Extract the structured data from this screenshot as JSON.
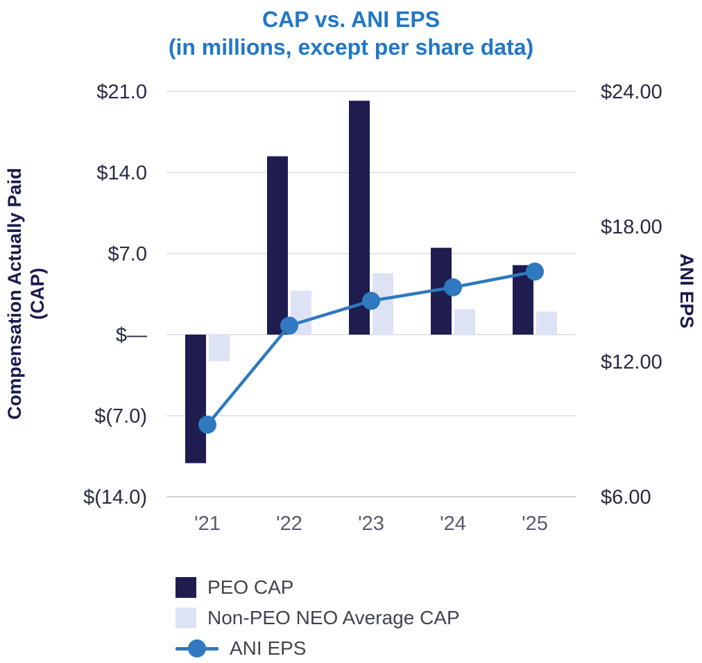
{
  "title": {
    "line1": "CAP vs. ANI EPS",
    "line2": "(in millions, except per share data)"
  },
  "left_axis": {
    "title_line1": "Compensation Actually Paid",
    "title_line2": "(CAP)",
    "ticks": [
      {
        "label": "$21.0",
        "value": 21
      },
      {
        "label": "$14.0",
        "value": 14
      },
      {
        "label": "$7.0",
        "value": 7
      },
      {
        "label": "$—",
        "value": 0
      },
      {
        "label": "$(7.0)",
        "value": -7
      },
      {
        "label": "$(14.0)",
        "value": -14
      }
    ]
  },
  "right_axis": {
    "title": "ANI EPS",
    "ticks": [
      {
        "label": "$24.00",
        "value": 24
      },
      {
        "label": "$18.00",
        "value": 18
      },
      {
        "label": "$12.00",
        "value": 12
      },
      {
        "label": "$6.00",
        "value": 6
      }
    ]
  },
  "legend": {
    "items": [
      {
        "label": "PEO CAP"
      },
      {
        "label": "Non-PEO NEO Average CAP"
      },
      {
        "label": "ANI EPS"
      }
    ]
  },
  "colors": {
    "title_blue": "#2177c8",
    "navy": "#1f1c50",
    "lavender": "#dde2f4",
    "line_blue": "#2e79c0",
    "grid": "#dcdce1",
    "axis_bottom": "#c2c2c8",
    "tick_text": "#262b3f",
    "x_tick_text": "#565b6c"
  },
  "chart_data": {
    "type": "bar+line combo",
    "title": "CAP vs. ANI EPS (in millions, except per share data)",
    "categories": [
      "'21",
      "'22",
      "'23",
      "'24",
      "'25"
    ],
    "series": [
      {
        "name": "PEO CAP",
        "type": "bar",
        "axis": "left",
        "color": "#1f1c50",
        "values": [
          -11.1,
          15.4,
          20.2,
          7.5,
          6.0
        ]
      },
      {
        "name": "Non-PEO NEO Average CAP",
        "type": "bar",
        "axis": "left",
        "color": "#dde2f4",
        "values": [
          -2.3,
          3.8,
          5.3,
          2.2,
          2.0
        ]
      },
      {
        "name": "ANI EPS",
        "type": "line",
        "axis": "right",
        "color": "#2e79c0",
        "values": [
          9.2,
          13.6,
          14.7,
          15.3,
          16.0
        ]
      }
    ],
    "left_ylabel": "Compensation Actually Paid (CAP)",
    "right_ylabel": "ANI EPS",
    "left_ylim": [
      -14,
      21
    ],
    "right_ylim": [
      6,
      24
    ],
    "grid": "horizontal",
    "legend_position": "bottom-left"
  }
}
